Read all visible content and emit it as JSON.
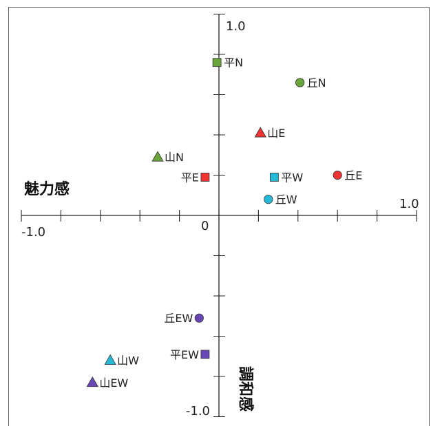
{
  "chart_data": {
    "type": "scatter",
    "xlabel": "魅力感",
    "ylabel": "調和感",
    "xlim": [
      -1.0,
      1.0
    ],
    "ylim": [
      -1.0,
      1.0
    ],
    "tick_interval": 0.2,
    "x_tick_labels": {
      "min": "-1.0",
      "max": "1.0"
    },
    "y_tick_labels": {
      "min": "-1.0",
      "max": "1.0"
    },
    "origin_label": "0",
    "grid": false,
    "points": [
      {
        "label": "平N",
        "x": -0.01,
        "y": 0.76,
        "marker": "square",
        "color": "#6aa53a"
      },
      {
        "label": "丘N",
        "x": 0.41,
        "y": 0.66,
        "marker": "circle",
        "color": "#6aa53a"
      },
      {
        "label": "山E",
        "x": 0.21,
        "y": 0.41,
        "marker": "triangle",
        "color": "#ee3333"
      },
      {
        "label": "山N",
        "x": -0.31,
        "y": 0.29,
        "marker": "triangle",
        "color": "#6aa53a"
      },
      {
        "label": "平E",
        "x": -0.07,
        "y": 0.19,
        "marker": "square",
        "color": "#ee3333"
      },
      {
        "label": "平W",
        "x": 0.28,
        "y": 0.19,
        "marker": "square",
        "color": "#26b9d6"
      },
      {
        "label": "丘E",
        "x": 0.6,
        "y": 0.2,
        "marker": "circle",
        "color": "#ee3333"
      },
      {
        "label": "丘W",
        "x": 0.25,
        "y": 0.08,
        "marker": "circle",
        "color": "#26b9d6"
      },
      {
        "label": "丘EW",
        "x": -0.1,
        "y": -0.51,
        "marker": "circle",
        "color": "#6647b5"
      },
      {
        "label": "平EW",
        "x": -0.07,
        "y": -0.69,
        "marker": "square",
        "color": "#6647b5"
      },
      {
        "label": "山W",
        "x": -0.55,
        "y": -0.72,
        "marker": "triangle",
        "color": "#26b9d6"
      },
      {
        "label": "山EW",
        "x": -0.64,
        "y": -0.83,
        "marker": "triangle",
        "color": "#6647b5"
      }
    ]
  }
}
